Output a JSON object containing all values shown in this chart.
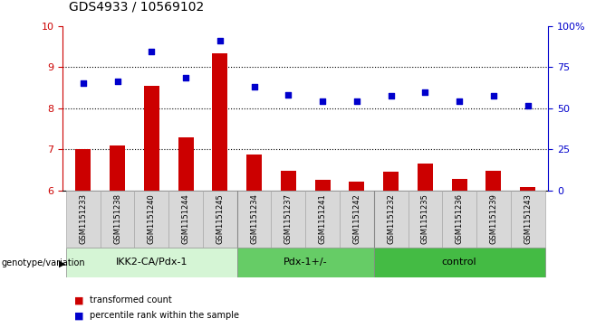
{
  "title": "GDS4933 / 10569102",
  "samples": [
    "GSM1151233",
    "GSM1151238",
    "GSM1151240",
    "GSM1151244",
    "GSM1151245",
    "GSM1151234",
    "GSM1151237",
    "GSM1151241",
    "GSM1151242",
    "GSM1151232",
    "GSM1151235",
    "GSM1151236",
    "GSM1151239",
    "GSM1151243"
  ],
  "bar_values": [
    7.0,
    7.1,
    8.55,
    7.3,
    9.35,
    6.88,
    6.48,
    6.25,
    6.22,
    6.45,
    6.65,
    6.28,
    6.48,
    6.07
  ],
  "scatter_values": [
    8.62,
    8.65,
    9.38,
    8.75,
    9.65,
    8.52,
    8.32,
    8.18,
    8.18,
    8.3,
    8.4,
    8.18,
    8.3,
    8.07
  ],
  "bar_color": "#cc0000",
  "scatter_color": "#0000cc",
  "ylim_left": [
    6,
    10
  ],
  "ylim_right": [
    0,
    100
  ],
  "yticks_left": [
    6,
    7,
    8,
    9,
    10
  ],
  "yticks_right": [
    0,
    25,
    50,
    75,
    100
  ],
  "ytick_labels_right": [
    "0",
    "25",
    "50",
    "75",
    "100%"
  ],
  "groups": [
    {
      "label": "IKK2-CA/Pdx-1",
      "start": 0,
      "end": 5,
      "color": "#d5f5d5"
    },
    {
      "label": "Pdx-1+/-",
      "start": 5,
      "end": 9,
      "color": "#66cc66"
    },
    {
      "label": "control",
      "start": 9,
      "end": 14,
      "color": "#44bb44"
    }
  ],
  "group_label_prefix": "genotype/variation",
  "legend_bar_label": "transformed count",
  "legend_scatter_label": "percentile rank within the sample",
  "bar_color_hex": "#cc0000",
  "scatter_color_hex": "#0000cc",
  "bar_width": 0.45,
  "tick_fontsize": 8,
  "label_fontsize": 6,
  "group_fontsize": 8,
  "title_fontsize": 10
}
